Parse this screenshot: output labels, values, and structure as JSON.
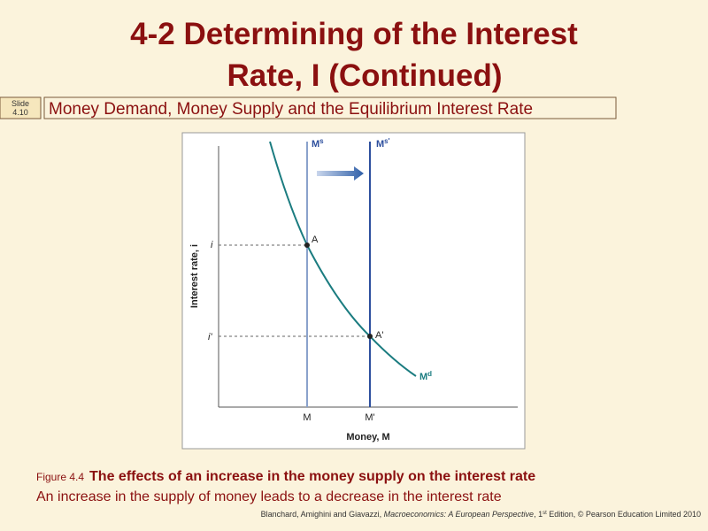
{
  "header": {
    "title_lines": [
      "4-2  Determining of the Interest",
      "Rate, I (Continued)"
    ],
    "slide_label": [
      "Slide",
      "4.10"
    ],
    "subtitle": "Money Demand, Money Supply and the Equilibrium  Interest Rate"
  },
  "diagram": {
    "y_axis_label": "Interest rate, i",
    "x_axis_label": "Money, M",
    "supply_before": {
      "base": "M",
      "sup": "s"
    },
    "supply_after": {
      "base": "M",
      "sup": "s'"
    },
    "demand": {
      "base": "M",
      "sup": "d"
    },
    "rate_before": "i",
    "rate_after": "i'",
    "point_before": "A",
    "point_after": "A'",
    "money_before": "M",
    "money_after": "M'"
  },
  "caption": {
    "figure_number": "Figure 4.4",
    "figure_title": "The effects of an increase in the money supply on the interest rate",
    "text": "An increase in the supply of money leads to a decrease in the interest rate"
  },
  "footer": {
    "authors": "Blanchard, Amighini and Giavazzi, ",
    "book": "Macroeconomics: A European Perspective",
    "edition_num": ", 1",
    "edition_sup": "st",
    "rest": " Edition, © Pearson Education Limited 2010"
  }
}
